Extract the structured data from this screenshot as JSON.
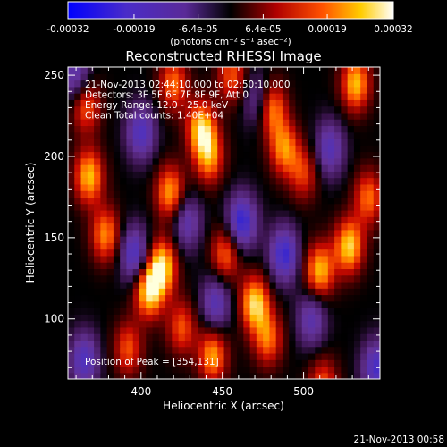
{
  "chart_data": {
    "type": "heatmap",
    "title": "Reconstructed RHESSI Image",
    "xlabel": "Heliocentric X (arcsec)",
    "ylabel": "Heliocentric Y (arcsec)",
    "xlim": [
      355,
      547
    ],
    "ylim": [
      63,
      255
    ],
    "x_ticks": [
      400,
      450,
      500
    ],
    "y_ticks": [
      100,
      150,
      200,
      250
    ],
    "colorbar": {
      "range": [
        -0.00032,
        0.00032
      ],
      "ticks": [
        "-0.00032",
        "-0.00019",
        "-6.4e-05",
        "6.4e-05",
        "0.00019",
        "0.00032"
      ],
      "unit_label": "(photons cm⁻² s⁻¹ asec⁻²)"
    },
    "annotations": [
      "21-Nov-2013 02:44:10.000 to 02:50:10.000",
      "Detectors: 3F 5F 6F 7F 8F 9F, Att 0",
      "Energy Range: 12.0 - 25.0 keV",
      "Clean     Total counts: 1.40E+04"
    ],
    "peak_label": "Position of Peak = [354,131]",
    "footer_timestamp": "21-Nov-2013 00:58",
    "blobs_positive": [
      [
        405,
        118,
        0.0003
      ],
      [
        413,
        133,
        0.00028
      ],
      [
        368,
        188,
        0.00026
      ],
      [
        378,
        152,
        0.00022
      ],
      [
        418,
        178,
        0.00024
      ],
      [
        420,
        245,
        0.0002
      ],
      [
        437,
        218,
        0.00026
      ],
      [
        442,
        200,
        0.00022
      ],
      [
        452,
        140,
        0.0002
      ],
      [
        480,
        230,
        0.00024
      ],
      [
        488,
        205,
        0.00022
      ],
      [
        470,
        110,
        0.00028
      ],
      [
        478,
        88,
        0.0002
      ],
      [
        510,
        130,
        0.00026
      ],
      [
        528,
        145,
        0.00028
      ],
      [
        540,
        175,
        0.0002
      ],
      [
        532,
        245,
        0.00026
      ],
      [
        512,
        60,
        0.00018
      ],
      [
        444,
        78,
        0.00024
      ],
      [
        392,
        82,
        0.00018
      ],
      [
        500,
        190,
        0.00016
      ],
      [
        456,
        250,
        0.00018
      ],
      [
        366,
        232,
        0.0002
      ],
      [
        425,
        95,
        0.00018
      ]
    ],
    "blobs_negative": [
      [
        462,
        160,
        -0.00028
      ],
      [
        396,
        140,
        -0.00024
      ],
      [
        446,
        110,
        -0.0002
      ],
      [
        488,
        140,
        -0.00026
      ],
      [
        516,
        205,
        -0.0002
      ],
      [
        400,
        215,
        -0.00022
      ],
      [
        365,
        75,
        -0.00022
      ],
      [
        360,
        250,
        -0.0002
      ],
      [
        545,
        70,
        -0.00024
      ],
      [
        505,
        100,
        -0.00018
      ],
      [
        428,
        160,
        -0.00018
      ],
      [
        472,
        235,
        -0.00016
      ]
    ]
  }
}
